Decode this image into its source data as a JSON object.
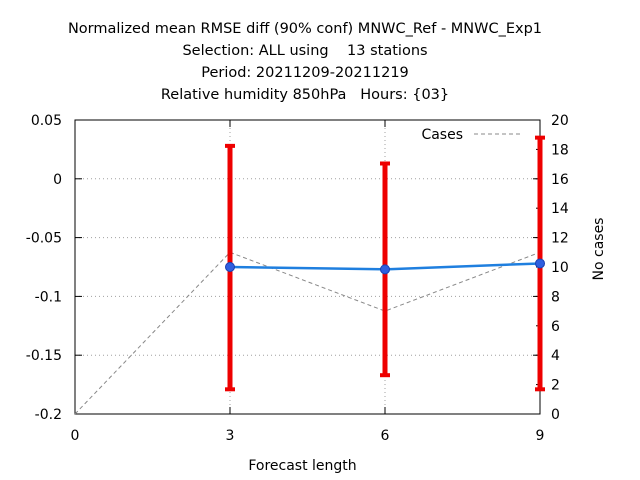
{
  "title_lines": [
    "Normalized mean RMSE diff (90% conf) MNWC_Ref - MNWC_Exp1",
    "Selection: ALL using    13 stations",
    "Period: 20211209-20211219",
    "Relative humidity 850hPa   Hours: {03}"
  ],
  "chart_data": {
    "type": "line",
    "xlabel": "Forecast length",
    "ylabel": "",
    "y2label": "No cases",
    "xlim": [
      0,
      9
    ],
    "ylim": [
      -0.2,
      0.05
    ],
    "y2lim": [
      0,
      20
    ],
    "x_ticks": [
      0,
      3,
      6,
      9
    ],
    "y_ticks": [
      -0.2,
      -0.15,
      -0.1,
      -0.05,
      0,
      0.05
    ],
    "y_tick_labels": [
      "-0.2",
      "-0.15",
      "-0.1",
      "-0.05",
      "0",
      "0.05"
    ],
    "y2_ticks": [
      0,
      2,
      4,
      6,
      8,
      10,
      12,
      14,
      16,
      18,
      20
    ],
    "grid": true,
    "legend_position": "top-right",
    "series": [
      {
        "x": [
          3,
          6,
          9
        ],
        "y": [
          -0.075,
          -0.077,
          -0.072
        ],
        "color": "#1f7fdf"
      }
    ],
    "error_bars": {
      "x": [
        3,
        6,
        9
      ],
      "low": [
        -0.179,
        -0.167,
        -0.179
      ],
      "high": [
        0.028,
        0.013,
        0.035
      ],
      "color": "#ee0000"
    },
    "cases": {
      "name": "Cases",
      "x": [
        0,
        3,
        6,
        9
      ],
      "y": [
        0,
        11,
        7,
        11
      ],
      "color": "#888888"
    }
  }
}
